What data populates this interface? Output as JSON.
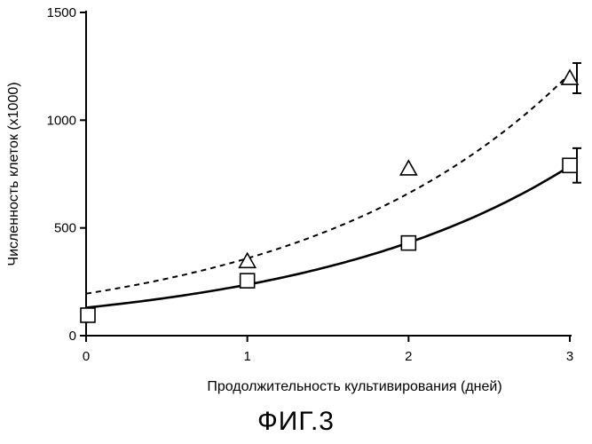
{
  "figure_label": "ФИГ.3",
  "chart_data": {
    "type": "scatter",
    "xlabel": "Продолжительность культивирования (дней)",
    "ylabel": "Численность клеток (х1000)",
    "xlim": [
      0,
      3
    ],
    "ylim": [
      0,
      1500
    ],
    "x_ticks": [
      "0",
      "1",
      "2",
      "3"
    ],
    "y_ticks": [
      "0",
      "500",
      "1000",
      "1500"
    ],
    "grid": false,
    "legend": "none",
    "series": [
      {
        "marker": "square",
        "x": [
          0,
          1,
          2,
          3
        ],
        "y": [
          95,
          255,
          430,
          790
        ],
        "error": [
          null,
          null,
          null,
          80
        ],
        "fit_line": "solid",
        "fit": {
          "a": 130,
          "b": 0.6
        }
      },
      {
        "marker": "triangle",
        "x": [
          1,
          2,
          3
        ],
        "y": [
          345,
          775,
          1195
        ],
        "error": [
          null,
          null,
          70
        ],
        "fit_line": "dashed",
        "fit": {
          "a": 195,
          "b": 0.61
        }
      }
    ]
  }
}
